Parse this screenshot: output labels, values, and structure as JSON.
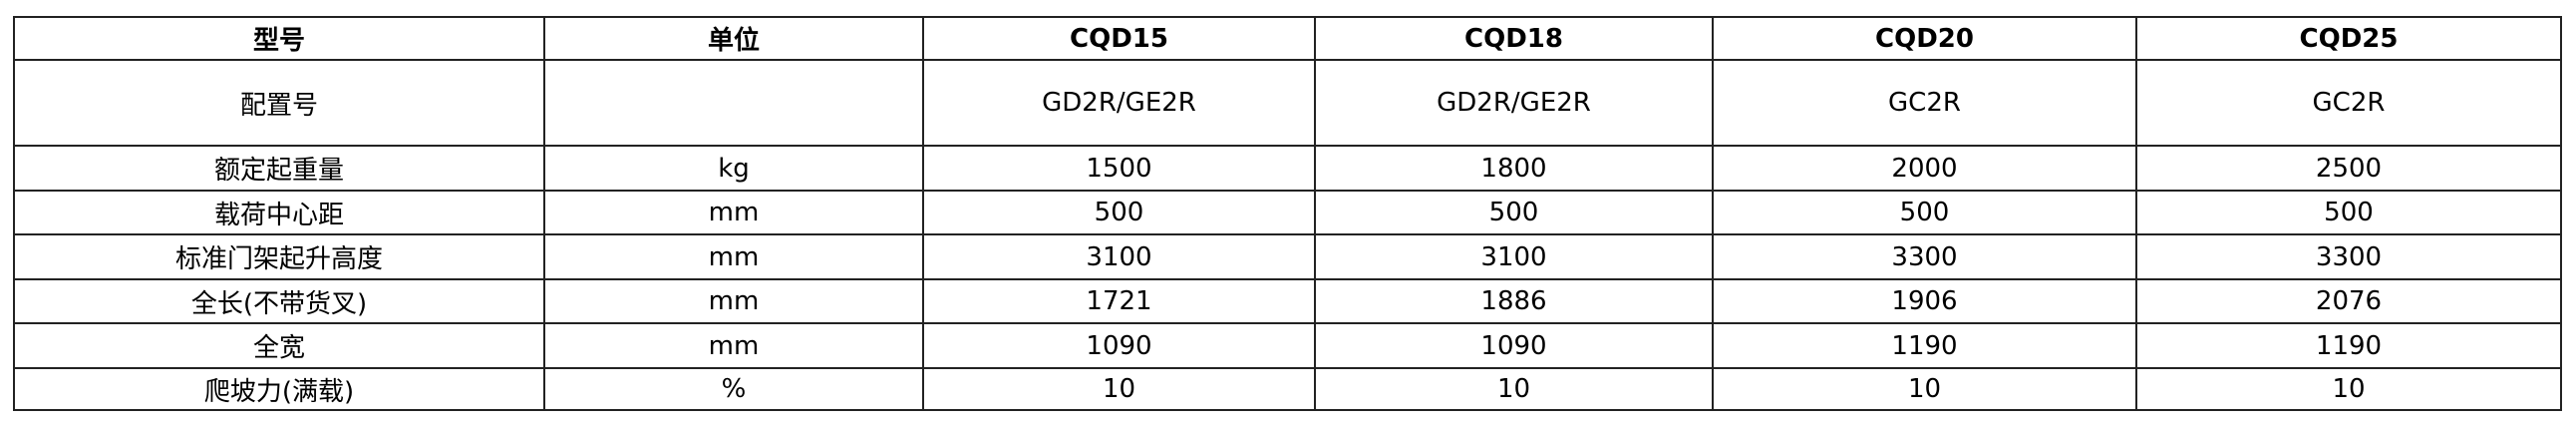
{
  "table": {
    "header": [
      "型号",
      "单位",
      "CQD15",
      "CQD18",
      "CQD20",
      "CQD25"
    ],
    "rows": [
      [
        "配置号",
        null,
        "GD2R/GE2R",
        "GD2R/GE2R",
        "GC2R",
        "GC2R"
      ],
      [
        "额定起重量",
        "kg",
        "1500",
        "1800",
        "2000",
        "2500"
      ],
      [
        "载荷中心距",
        "mm",
        "500",
        "500",
        "500",
        "500"
      ],
      [
        "标准门架起升高度",
        "mm",
        "3100",
        "3100",
        "3300",
        "3300"
      ],
      [
        "全长(不带货叉)",
        "mm",
        "1721",
        "1886",
        "1906",
        "2076"
      ],
      [
        "全宽",
        "mm",
        "1090",
        "1090",
        "1190",
        "1190"
      ],
      [
        "爬坡力(满载)",
        "%",
        "10",
        "10",
        "10",
        "10"
      ]
    ]
  }
}
